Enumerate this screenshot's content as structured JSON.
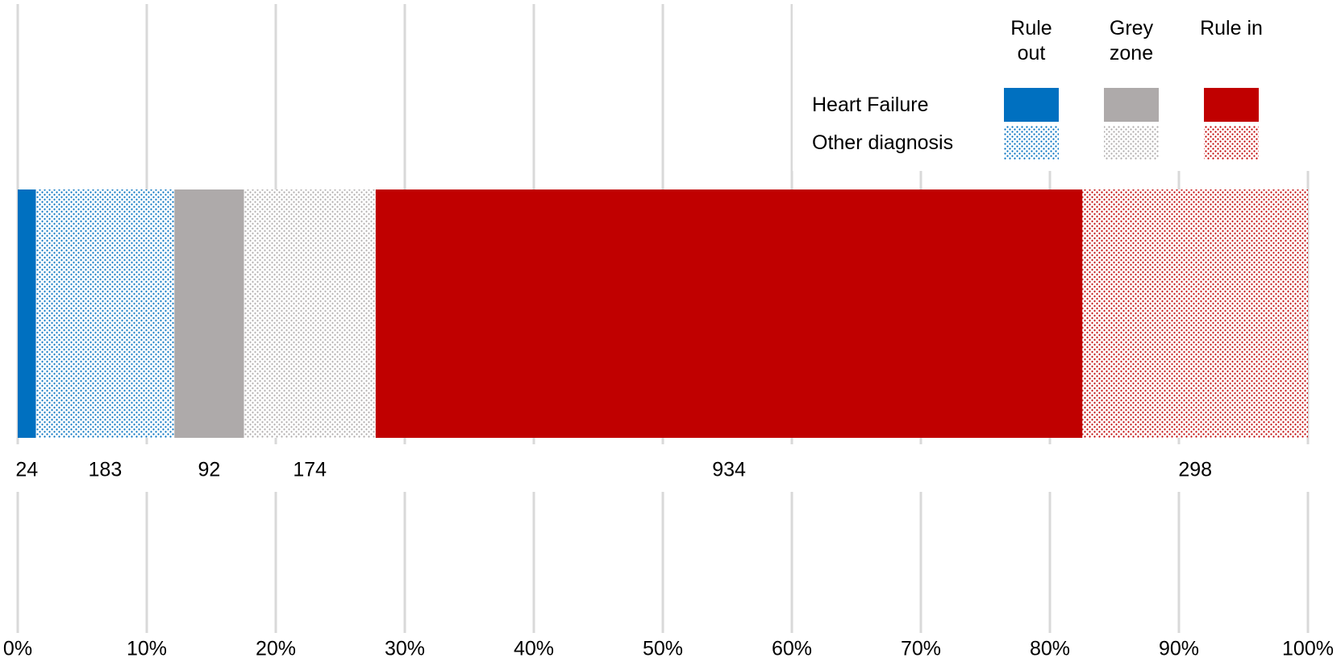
{
  "chart_data": {
    "type": "stacked-share-bar",
    "values": [
      24,
      183,
      92,
      174,
      934,
      298
    ],
    "legend_columns": [
      {
        "label": "Rule out",
        "color": "#0070c0"
      },
      {
        "label": "Grey zone",
        "color": "#aeaaaa"
      },
      {
        "label": "Rule in",
        "color": "#c00000"
      }
    ],
    "legend_rows": [
      {
        "label": "Heart Failure",
        "pattern": "solid"
      },
      {
        "label": "Other diagnosis",
        "pattern": "dotted"
      }
    ],
    "xlim": [
      0,
      100
    ],
    "xticks": [
      {
        "value": 0,
        "label": "0%"
      },
      {
        "value": 10,
        "label": "10%"
      },
      {
        "value": 20,
        "label": "20%"
      },
      {
        "value": 30,
        "label": "30%"
      },
      {
        "value": 40,
        "label": "40%"
      },
      {
        "value": 50,
        "label": "50%"
      },
      {
        "value": 60,
        "label": "60%"
      },
      {
        "value": 70,
        "label": "70%"
      },
      {
        "value": 80,
        "label": "80%"
      },
      {
        "value": 90,
        "label": "90%"
      },
      {
        "value": 100,
        "label": "100%"
      }
    ],
    "grid": true
  }
}
